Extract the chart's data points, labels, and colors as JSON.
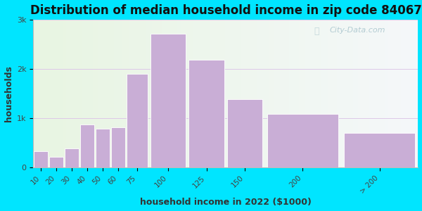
{
  "title": "Distribution of median household income in zip code 84067",
  "xlabel": "household income in 2022 ($1000)",
  "ylabel": "households",
  "bar_lefts": [
    0,
    10,
    20,
    30,
    40,
    50,
    60,
    75,
    100,
    125,
    150,
    200
  ],
  "bar_widths": [
    10,
    10,
    10,
    10,
    10,
    10,
    15,
    25,
    25,
    25,
    50,
    50
  ],
  "bar_labels": [
    "10",
    "20",
    "30",
    "40",
    "50",
    "60",
    "75",
    "100",
    "125",
    "150",
    "200",
    "> 200"
  ],
  "values": [
    330,
    220,
    380,
    870,
    790,
    820,
    1900,
    2720,
    2180,
    1380,
    1080,
    700
  ],
  "bar_color": "#c9aed6",
  "background_color": "#00e5ff",
  "plot_bg_left": "#e8f5e2",
  "plot_bg_right": "#f5f8fa",
  "yticks": [
    0,
    1000,
    2000,
    3000
  ],
  "ytick_labels": [
    "0",
    "1k",
    "2k",
    "3k"
  ],
  "ylim": [
    0,
    3000
  ],
  "xlim": [
    0,
    250
  ],
  "title_fontsize": 12,
  "axis_label_fontsize": 9,
  "watermark_text": "City-Data.com"
}
